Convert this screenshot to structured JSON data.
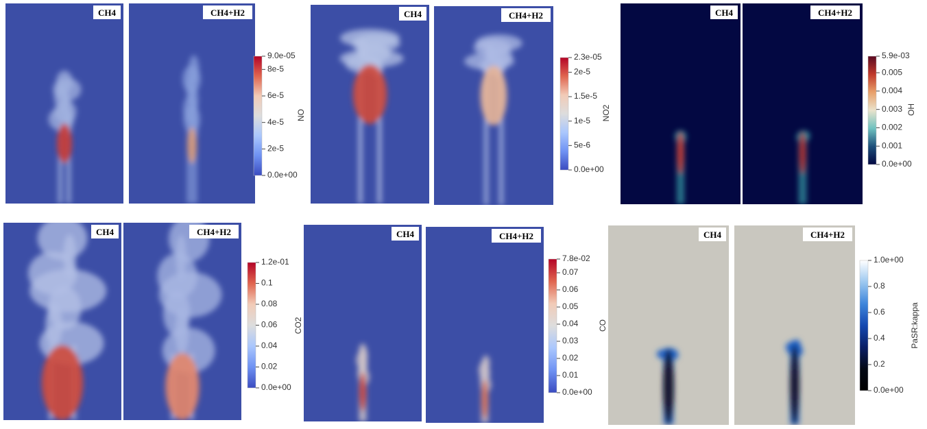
{
  "figure": {
    "groups": [
      {
        "panels": [
          "CH4",
          "CH4+H2"
        ],
        "colorbar": {
          "title": "NO",
          "range": [
            0,
            9e-05
          ],
          "ticks": [
            {
              "value": 0,
              "label": "0.0e+00"
            },
            {
              "value": 2e-05,
              "label": "2e-5"
            },
            {
              "value": 4e-05,
              "label": "4e-5"
            },
            {
              "value": 6e-05,
              "label": "6e-5"
            },
            {
              "value": 8e-05,
              "label": "8e-5"
            },
            {
              "value": 9e-05,
              "label": "9.0e-05"
            }
          ]
        }
      },
      {
        "panels": [
          "CH4",
          "CH4+H2"
        ],
        "colorbar": {
          "title": "NO2",
          "range": [
            0,
            2.3e-05
          ],
          "ticks": [
            {
              "value": 0,
              "label": "0.0e+00"
            },
            {
              "value": 5e-06,
              "label": "5e-6"
            },
            {
              "value": 1e-05,
              "label": "1e-5"
            },
            {
              "value": 1.5e-05,
              "label": "1.5e-5"
            },
            {
              "value": 2e-05,
              "label": "2e-5"
            },
            {
              "value": 2.3e-05,
              "label": "2.3e-05"
            }
          ]
        }
      },
      {
        "panels": [
          "CH4",
          "CH4+H2"
        ],
        "colorbar": {
          "title": "OH",
          "range": [
            0,
            0.0059
          ],
          "ticks": [
            {
              "value": 0,
              "label": "0.0e+00"
            },
            0.001,
            0.002,
            0.003,
            0.004,
            0.005,
            {
              "value": 0.0059,
              "label": "5.9e-03"
            }
          ]
        }
      },
      {
        "panels": [
          "CH4",
          "CH4+H2"
        ],
        "colorbar": {
          "title": "CO2",
          "range": [
            0,
            0.12
          ],
          "ticks": [
            {
              "value": 0,
              "label": "0.0e+00"
            },
            0.02,
            0.04,
            0.06,
            0.08,
            0.1,
            {
              "value": 0.12,
              "label": "1.2e-01"
            }
          ]
        }
      },
      {
        "panels": [
          "CH4",
          "CH4+H2"
        ],
        "colorbar": {
          "title": "CO",
          "range": [
            0,
            0.078
          ],
          "ticks": [
            {
              "value": 0,
              "label": "0.0e+00"
            },
            0.01,
            0.02,
            0.03,
            0.04,
            0.05,
            0.06,
            0.07,
            {
              "value": 0.078,
              "label": "7.8e-02"
            }
          ]
        }
      },
      {
        "panels": [
          "CH4",
          "CH4+H2"
        ],
        "colorbar": {
          "title": "PaSR:kappa",
          "range": [
            0,
            1
          ],
          "ticks": [
            {
              "value": 0,
              "label": "0.0e+00"
            },
            0.2,
            0.4,
            0.6,
            0.8,
            {
              "value": 1,
              "label": "1.0e+00"
            }
          ]
        }
      }
    ]
  }
}
